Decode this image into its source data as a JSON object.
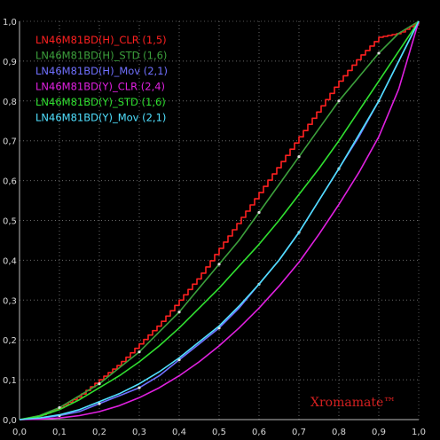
{
  "chart_data": {
    "type": "line",
    "title": "",
    "xlabel": "",
    "ylabel": "",
    "xlim": [
      0,
      1
    ],
    "ylim": [
      0,
      1
    ],
    "grid": true,
    "legend_position": "top-left",
    "x_ticks": [
      "0,0",
      "0,1",
      "0,2",
      "0,3",
      "0,4",
      "0,5",
      "0,6",
      "0,7",
      "0,8",
      "0,9",
      "1,0"
    ],
    "y_ticks": [
      "0,0",
      "0,1",
      "0,2",
      "0,3",
      "0,4",
      "0,5",
      "0,6",
      "0,7",
      "0,8",
      "0,9",
      "1,0"
    ],
    "watermark": "Xromamate™",
    "series": [
      {
        "name": "LN46M81BD(H)_CLR (1,5)",
        "color": "#ff2020",
        "style": "stepped",
        "x": [
          0,
          0.05,
          0.1,
          0.15,
          0.2,
          0.25,
          0.3,
          0.35,
          0.4,
          0.45,
          0.5,
          0.55,
          0.6,
          0.65,
          0.7,
          0.75,
          0.8,
          0.85,
          0.9,
          0.95,
          1.0
        ],
        "y": [
          0,
          0.01,
          0.03,
          0.06,
          0.1,
          0.14,
          0.19,
          0.24,
          0.3,
          0.36,
          0.43,
          0.5,
          0.57,
          0.64,
          0.71,
          0.78,
          0.85,
          0.91,
          0.96,
          0.97,
          1.0
        ]
      },
      {
        "name": "LN46M81BD(H)_STD (1,6)",
        "color": "#3ca03c",
        "style": "dotted",
        "x": [
          0,
          0.05,
          0.1,
          0.15,
          0.2,
          0.25,
          0.3,
          0.35,
          0.4,
          0.45,
          0.5,
          0.55,
          0.6,
          0.65,
          0.7,
          0.75,
          0.8,
          0.85,
          0.9,
          0.95,
          1.0
        ],
        "y": [
          0,
          0.01,
          0.03,
          0.06,
          0.09,
          0.13,
          0.17,
          0.22,
          0.27,
          0.33,
          0.39,
          0.45,
          0.52,
          0.59,
          0.66,
          0.73,
          0.8,
          0.86,
          0.92,
          0.97,
          1.0
        ]
      },
      {
        "name": "LN46M81BD(H)_Mov (2,1)",
        "color": "#7070ff",
        "style": "dotted",
        "x": [
          0,
          0.05,
          0.1,
          0.15,
          0.2,
          0.25,
          0.3,
          0.35,
          0.4,
          0.45,
          0.5,
          0.55,
          0.6,
          0.65,
          0.7,
          0.75,
          0.8,
          0.85,
          0.9,
          0.95,
          1.0
        ],
        "y": [
          0,
          0.003,
          0.01,
          0.02,
          0.04,
          0.06,
          0.08,
          0.11,
          0.15,
          0.19,
          0.23,
          0.28,
          0.34,
          0.4,
          0.47,
          0.55,
          0.63,
          0.71,
          0.8,
          0.9,
          1.0
        ]
      },
      {
        "name": "LN46M81BD(Y)_CLR (2,4)",
        "color": "#e020e0",
        "style": "solid",
        "x": [
          0,
          0.05,
          0.1,
          0.15,
          0.2,
          0.25,
          0.3,
          0.35,
          0.4,
          0.45,
          0.5,
          0.55,
          0.6,
          0.65,
          0.7,
          0.75,
          0.8,
          0.85,
          0.9,
          0.95,
          1.0
        ],
        "y": [
          0,
          0.001,
          0.004,
          0.01,
          0.02,
          0.035,
          0.055,
          0.08,
          0.11,
          0.145,
          0.185,
          0.23,
          0.28,
          0.335,
          0.395,
          0.465,
          0.54,
          0.62,
          0.71,
          0.83,
          1.0
        ]
      },
      {
        "name": "LN46M81BD(Y)_STD (1,6)",
        "color": "#30e030",
        "style": "solid",
        "x": [
          0,
          0.05,
          0.1,
          0.15,
          0.2,
          0.25,
          0.3,
          0.35,
          0.4,
          0.45,
          0.5,
          0.55,
          0.6,
          0.65,
          0.7,
          0.75,
          0.8,
          0.85,
          0.9,
          0.95,
          1.0
        ],
        "y": [
          0,
          0.008,
          0.025,
          0.05,
          0.08,
          0.11,
          0.145,
          0.185,
          0.23,
          0.28,
          0.33,
          0.385,
          0.44,
          0.5,
          0.565,
          0.63,
          0.7,
          0.775,
          0.85,
          0.925,
          1.0
        ]
      },
      {
        "name": "LN46M81BD(Y)_Mov (2,1)",
        "color": "#50e0ff",
        "style": "solid",
        "x": [
          0,
          0.05,
          0.1,
          0.15,
          0.2,
          0.25,
          0.3,
          0.35,
          0.4,
          0.45,
          0.5,
          0.55,
          0.6,
          0.65,
          0.7,
          0.75,
          0.8,
          0.85,
          0.9,
          0.95,
          1.0
        ],
        "y": [
          0,
          0.004,
          0.012,
          0.025,
          0.045,
          0.065,
          0.09,
          0.12,
          0.155,
          0.195,
          0.235,
          0.285,
          0.34,
          0.4,
          0.47,
          0.55,
          0.63,
          0.715,
          0.8,
          0.9,
          1.0
        ]
      }
    ]
  }
}
